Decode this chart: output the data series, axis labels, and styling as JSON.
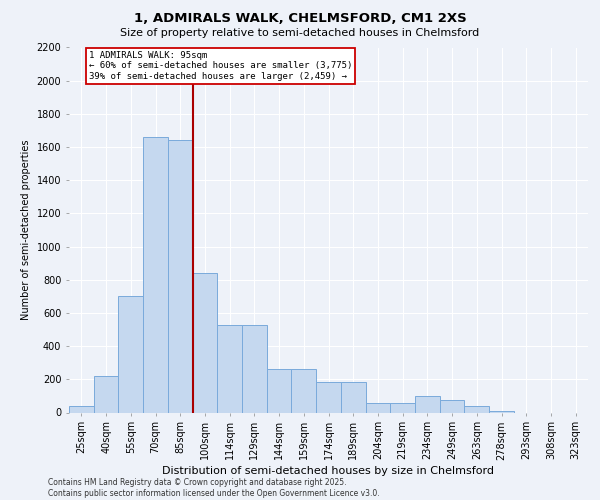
{
  "title1": "1, ADMIRALS WALK, CHELMSFORD, CM1 2XS",
  "title2": "Size of property relative to semi-detached houses in Chelmsford",
  "xlabel": "Distribution of semi-detached houses by size in Chelmsford",
  "ylabel": "Number of semi-detached properties",
  "categories": [
    "25sqm",
    "40sqm",
    "55sqm",
    "70sqm",
    "85sqm",
    "100sqm",
    "114sqm",
    "129sqm",
    "144sqm",
    "159sqm",
    "174sqm",
    "189sqm",
    "204sqm",
    "219sqm",
    "234sqm",
    "249sqm",
    "263sqm",
    "278sqm",
    "293sqm",
    "308sqm",
    "323sqm"
  ],
  "values": [
    40,
    220,
    700,
    1660,
    1640,
    840,
    530,
    530,
    260,
    260,
    185,
    185,
    55,
    55,
    100,
    75,
    40,
    10,
    0,
    0,
    0
  ],
  "bar_color": "#c5d8ef",
  "bar_edge_color": "#7aaadb",
  "vline_x": 5.0,
  "vline_color": "#aa0000",
  "annotation_title": "1 ADMIRALS WALK: 95sqm",
  "annotation_line1": "← 60% of semi-detached houses are smaller (3,775)",
  "annotation_line2": "39% of semi-detached houses are larger (2,459) →",
  "annotation_box_color": "#ffffff",
  "annotation_box_edge": "#cc0000",
  "footer1": "Contains HM Land Registry data © Crown copyright and database right 2025.",
  "footer2": "Contains public sector information licensed under the Open Government Licence v3.0.",
  "ylim": [
    0,
    2200
  ],
  "yticks": [
    0,
    200,
    400,
    600,
    800,
    1000,
    1200,
    1400,
    1600,
    1800,
    2000,
    2200
  ],
  "bg_color": "#eef2f9",
  "grid_color": "#ffffff",
  "title1_fontsize": 9.5,
  "title2_fontsize": 8,
  "ylabel_fontsize": 7,
  "xlabel_fontsize": 8,
  "tick_fontsize": 7,
  "footer_fontsize": 5.5
}
